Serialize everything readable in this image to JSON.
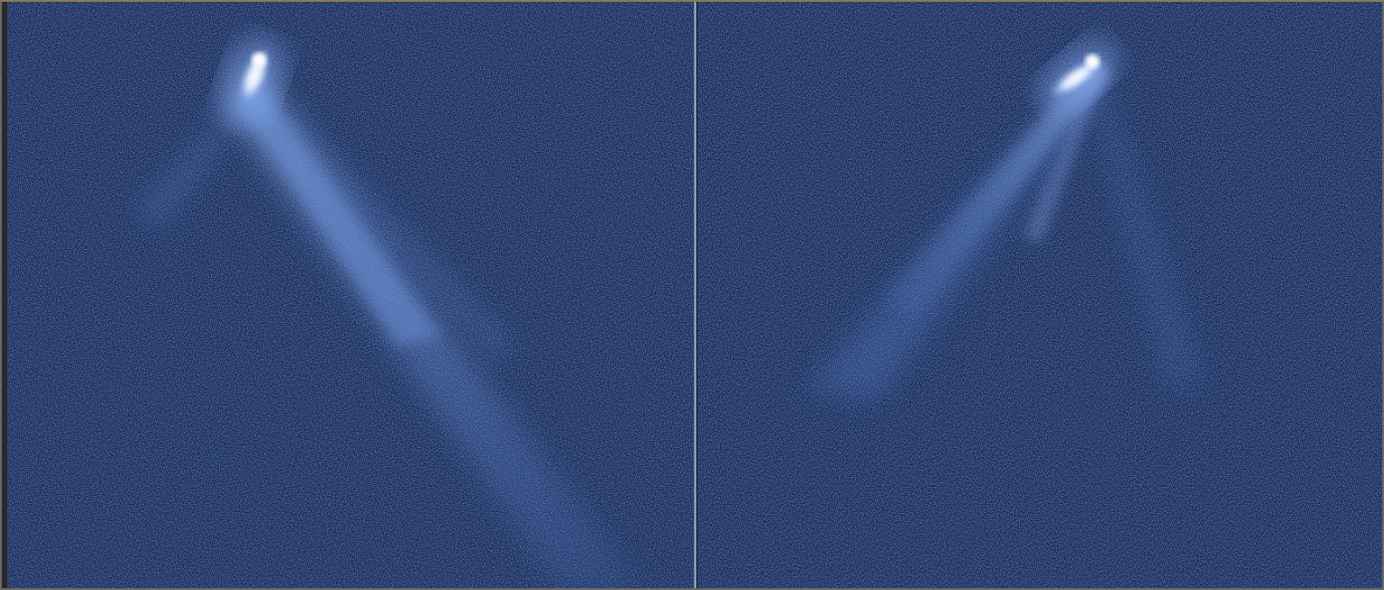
{
  "image": {
    "subject": "comet-like-object-tails",
    "panels": [
      {
        "name": "left-panel",
        "background": "#0e2150"
      },
      {
        "name": "right-panel",
        "background": "#0e2150"
      }
    ],
    "colors": {
      "space_background": "#0e2150",
      "noise_light": "#3d5a9a",
      "tail_blue": "#5b86d6",
      "nucleus_core": "#ffffff",
      "nucleus_glow": "#a9c8ff",
      "divider": "#b8c2d4"
    }
  }
}
